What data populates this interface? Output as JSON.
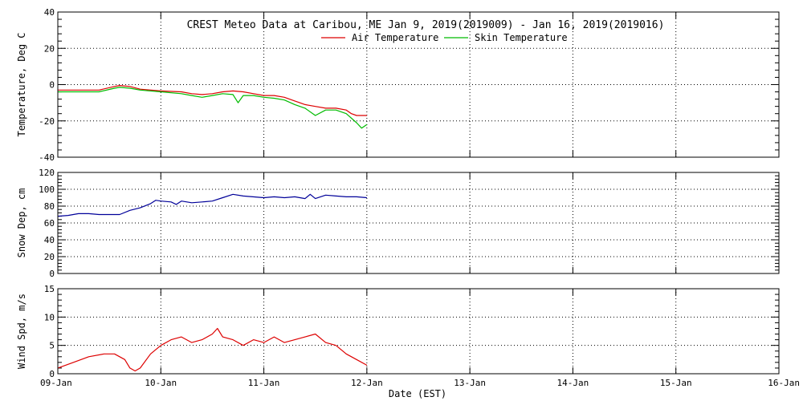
{
  "colors": {
    "air": "#dd0000",
    "skin": "#00bb00",
    "snow": "#000099",
    "wind": "#dd0000",
    "axis": "#000000",
    "grid": "#000000"
  },
  "figure": {
    "title": "CREST Meteo Data at Caribou, ME   Jan  9, 2019(2019009) - Jan 16, 2019(2019016)",
    "xlabel": "Date (EST)"
  },
  "chart_data": [
    {
      "type": "line",
      "ylabel": "Temperature, Deg C",
      "xlim": [
        0,
        7
      ],
      "ylim": [
        -40,
        40
      ],
      "yticks": [
        -40,
        -20,
        0,
        20,
        40
      ],
      "grid": true,
      "legend_position": "top-center",
      "series": [
        {
          "name": "Air Temperature",
          "x": [
            0,
            0.2,
            0.4,
            0.55,
            0.6,
            0.7,
            0.8,
            1.0,
            1.2,
            1.3,
            1.4,
            1.5,
            1.6,
            1.7,
            1.8,
            1.9,
            2.0,
            2.1,
            2.2,
            2.3,
            2.4,
            2.5,
            2.6,
            2.7,
            2.8,
            2.85,
            2.9,
            3.0
          ],
          "values": [
            -3,
            -3,
            -3,
            -1,
            -0.5,
            -1,
            -2.5,
            -3.5,
            -4,
            -5,
            -5.5,
            -5,
            -4,
            -3.5,
            -4,
            -5,
            -6,
            -6,
            -7,
            -9,
            -11,
            -12,
            -13,
            -13,
            -14,
            -16,
            -17,
            -17
          ]
        },
        {
          "name": "Skin Temperature",
          "x": [
            0,
            0.2,
            0.4,
            0.55,
            0.6,
            0.7,
            0.8,
            1.0,
            1.2,
            1.3,
            1.4,
            1.5,
            1.6,
            1.7,
            1.75,
            1.8,
            1.9,
            2.0,
            2.1,
            2.2,
            2.3,
            2.4,
            2.5,
            2.6,
            2.7,
            2.8,
            2.9,
            2.95,
            3.0
          ],
          "values": [
            -4,
            -4,
            -4,
            -2,
            -1.5,
            -2,
            -3,
            -4,
            -5,
            -6,
            -7,
            -6,
            -5,
            -5.5,
            -10,
            -6,
            -6,
            -7,
            -7.5,
            -8.5,
            -11,
            -13,
            -17,
            -14,
            -14,
            -16,
            -21,
            -24,
            -22
          ]
        }
      ]
    },
    {
      "type": "line",
      "ylabel": "Snow Dep, cm",
      "xlim": [
        0,
        7
      ],
      "ylim": [
        0,
        120
      ],
      "yticks": [
        0,
        20,
        40,
        60,
        80,
        100,
        120
      ],
      "grid": true,
      "series": [
        {
          "name": "",
          "x": [
            0,
            0.1,
            0.2,
            0.3,
            0.4,
            0.5,
            0.6,
            0.7,
            0.8,
            0.9,
            0.95,
            1.0,
            1.1,
            1.15,
            1.2,
            1.3,
            1.4,
            1.5,
            1.6,
            1.7,
            1.8,
            2.0,
            2.1,
            2.2,
            2.3,
            2.4,
            2.45,
            2.5,
            2.6,
            2.7,
            2.8,
            2.9,
            3.0
          ],
          "values": [
            68,
            69,
            71,
            71,
            70,
            70,
            70,
            75,
            78,
            83,
            87,
            86,
            85,
            82,
            86,
            84,
            85,
            86,
            90,
            94,
            92,
            90,
            91,
            90,
            91,
            89,
            94,
            89,
            93,
            92,
            91,
            91,
            90
          ]
        }
      ]
    },
    {
      "type": "line",
      "ylabel": "Wind Spd, m/s",
      "xlim": [
        0,
        7
      ],
      "ylim": [
        0,
        15
      ],
      "yticks": [
        0,
        5,
        10,
        15
      ],
      "grid": true,
      "series": [
        {
          "name": "",
          "x": [
            0,
            0.15,
            0.3,
            0.45,
            0.55,
            0.65,
            0.7,
            0.75,
            0.8,
            0.9,
            1.0,
            1.1,
            1.2,
            1.3,
            1.4,
            1.5,
            1.55,
            1.6,
            1.7,
            1.8,
            1.9,
            2.0,
            2.1,
            2.2,
            2.3,
            2.4,
            2.5,
            2.6,
            2.7,
            2.8,
            2.9,
            3.0
          ],
          "values": [
            1,
            2,
            3,
            3.5,
            3.5,
            2.5,
            1,
            0.5,
            1,
            3.5,
            5,
            6,
            6.5,
            5.5,
            6,
            7,
            8,
            6.5,
            6,
            5,
            6,
            5.5,
            6.5,
            5.5,
            6,
            6.5,
            7,
            5.5,
            5,
            3.5,
            2.5,
            1.5
          ]
        }
      ]
    }
  ],
  "xaxis": {
    "ticks": [
      0,
      1,
      2,
      3,
      4,
      5,
      6,
      7
    ],
    "labels": [
      "09-Jan",
      "10-Jan",
      "11-Jan",
      "12-Jan",
      "13-Jan",
      "14-Jan",
      "15-Jan",
      "16-Jan"
    ]
  }
}
